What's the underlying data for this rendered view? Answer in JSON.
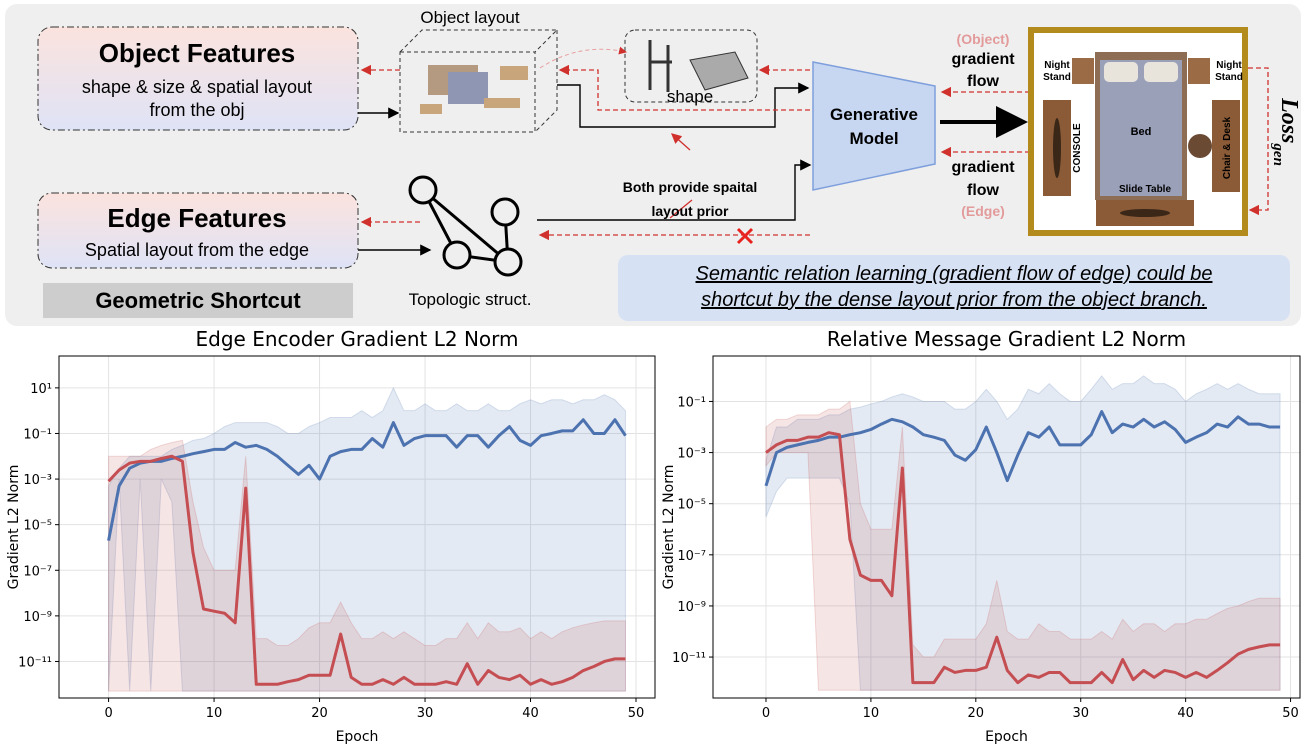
{
  "diagram": {
    "object_features": {
      "title": "Object Features",
      "lines": [
        "shape & size & spatial layout",
        "from the obj"
      ]
    },
    "object_layout_label": "Object layout",
    "shape_label": "shape",
    "generative_model": [
      "Generative",
      "Model"
    ],
    "gradient_flow_object": [
      "(Object)",
      "gradient",
      "flow"
    ],
    "gradient_flow_edge": [
      "gradient",
      "flow",
      "(Edge)"
    ],
    "prior_note": [
      "Both provide spaital",
      "layout prior"
    ],
    "edge_features": {
      "title": "Edge Features",
      "line": "Spatial layout from the edge"
    },
    "shortcut_label": "Geometric Shortcut",
    "topology_label": "Topologic struct.",
    "caption": [
      "Semantic relation learning (gradient flow of edge) could be",
      "shortcut by the dense layout prior from the object branch."
    ],
    "room": {
      "night_stand_left": [
        "Night",
        "Stand"
      ],
      "night_stand_right": [
        "Night",
        "Stand"
      ],
      "bed": "Bed",
      "console": "CONSOLE",
      "chair_desk": "Chair & Desk",
      "slide_table": "Slide Table"
    },
    "loss": {
      "text": "Loss",
      "subscript": "gen"
    }
  },
  "chart_data": [
    {
      "type": "line",
      "title": "Edge Encoder Gradient L2 Norm",
      "x_label": "Epoch",
      "y_label": "Gradient L2 Norm",
      "yscale": "log",
      "grid": true,
      "xlim": [
        -4.7,
        51.8
      ],
      "ylim": [
        2.5e-13,
        250
      ],
      "xticks": [
        0,
        10,
        20,
        30,
        40,
        50
      ],
      "yticks": [
        {
          "value": 10,
          "label": "10¹"
        },
        {
          "value": 0.1,
          "label": "10⁻¹"
        },
        {
          "value": 0.001,
          "label": "10⁻³"
        },
        {
          "value": 1e-05,
          "label": "10⁻⁵"
        },
        {
          "value": 1e-07,
          "label": "10⁻⁷"
        },
        {
          "value": 1e-09,
          "label": "10⁻⁹"
        },
        {
          "value": 1e-11,
          "label": "10⁻¹¹"
        }
      ],
      "x": [
        0,
        1,
        2,
        3,
        4,
        5,
        6,
        7,
        8,
        9,
        10,
        11,
        12,
        13,
        14,
        15,
        16,
        17,
        18,
        19,
        20,
        21,
        22,
        23,
        24,
        25,
        26,
        27,
        28,
        29,
        30,
        31,
        32,
        33,
        34,
        35,
        36,
        37,
        38,
        39,
        40,
        41,
        42,
        43,
        44,
        45,
        46,
        47,
        48,
        49
      ],
      "series": [
        {
          "color": "#4c72b0",
          "values": [
            2e-06,
            0.0005,
            0.003,
            0.005,
            0.006,
            0.006,
            0.008,
            0.01,
            0.013,
            0.016,
            0.02,
            0.02,
            0.04,
            0.025,
            0.03,
            0.02,
            0.01,
            0.004,
            0.0016,
            0.004,
            0.001,
            0.01,
            0.016,
            0.02,
            0.02,
            0.06,
            0.025,
            0.3,
            0.03,
            0.06,
            0.08,
            0.08,
            0.08,
            0.025,
            0.08,
            0.08,
            0.025,
            0.08,
            0.2,
            0.05,
            0.03,
            0.08,
            0.1,
            0.13,
            0.13,
            0.4,
            0.1,
            0.1,
            0.4,
            0.08
          ],
          "lower": [
            5e-13,
            0.001,
            5e-13,
            0.001,
            5e-13,
            0.001,
            0.0001,
            5e-13,
            5e-13,
            5e-13,
            5e-13,
            5e-13,
            5e-13,
            5e-13,
            5e-13,
            5e-13,
            5e-13,
            5e-13,
            5e-13,
            5e-13,
            5e-13,
            5e-13,
            5e-13,
            5e-13,
            5e-13,
            5e-13,
            5e-13,
            5e-13,
            5e-13,
            5e-13,
            5e-13,
            5e-13,
            5e-13,
            5e-13,
            5e-13,
            5e-13,
            5e-13,
            5e-13,
            5e-13,
            5e-13,
            5e-13,
            5e-13,
            5e-13,
            5e-13,
            5e-13,
            5e-13,
            5e-13,
            5e-13,
            5e-13,
            5e-13
          ],
          "upper": [
            0.0005,
            0.003,
            0.01,
            0.01,
            0.01,
            0.01,
            0.02,
            0.03,
            0.05,
            0.06,
            0.1,
            0.2,
            0.3,
            0.3,
            0.3,
            0.3,
            0.2,
            0.1,
            0.1,
            0.2,
            0.3,
            0.5,
            0.5,
            0.5,
            1,
            0.5,
            1,
            10,
            1,
            1,
            2,
            1,
            1,
            2,
            1,
            1,
            2,
            1,
            1,
            2,
            3,
            2,
            3,
            3,
            2,
            3,
            3,
            5,
            3,
            1
          ]
        },
        {
          "color": "#c44e52",
          "values": [
            0.0008,
            0.0025,
            0.005,
            0.006,
            0.006,
            0.008,
            0.01,
            0.006,
            6e-07,
            2e-09,
            1.6e-09,
            1.3e-09,
            5e-10,
            0.0004,
            1e-12,
            1e-12,
            1e-12,
            1.3e-12,
            1.6e-12,
            2.5e-12,
            2.5e-12,
            2.5e-12,
            1.6e-10,
            2e-12,
            1e-12,
            1e-12,
            1.6e-12,
            1e-12,
            2e-12,
            1e-12,
            1e-12,
            1e-12,
            1.3e-12,
            1e-12,
            8e-12,
            1e-12,
            4e-12,
            2e-12,
            1.6e-12,
            2.5e-12,
            1e-12,
            1.6e-12,
            1e-12,
            1.3e-12,
            2e-12,
            4e-12,
            6e-12,
            1e-11,
            1.3e-11,
            1.3e-11
          ],
          "lower": [
            5e-13,
            5e-13,
            5e-13,
            5e-13,
            5e-13,
            5e-13,
            5e-13,
            5e-13,
            5e-13,
            5e-13,
            5e-13,
            5e-13,
            5e-13,
            5e-13,
            5e-13,
            5e-13,
            5e-13,
            5e-13,
            5e-13,
            5e-13,
            5e-13,
            5e-13,
            5e-13,
            5e-13,
            5e-13,
            5e-13,
            5e-13,
            5e-13,
            5e-13,
            5e-13,
            5e-13,
            5e-13,
            5e-13,
            5e-13,
            5e-13,
            5e-13,
            5e-13,
            5e-13,
            5e-13,
            5e-13,
            5e-13,
            5e-13,
            5e-13,
            5e-13,
            5e-13,
            5e-13,
            5e-13,
            5e-13,
            5e-13,
            5e-13
          ],
          "upper": [
            0.01,
            0.01,
            0.01,
            0.01,
            0.02,
            0.03,
            0.04,
            0.05,
            0.0001,
            1e-06,
            1e-07,
            1e-07,
            1e-07,
            0.01,
            1e-10,
            1e-10,
            5e-11,
            5e-11,
            1e-10,
            3e-10,
            5e-10,
            5e-10,
            4e-09,
            5e-10,
            1e-10,
            1e-10,
            2e-10,
            1e-10,
            2e-10,
            1e-10,
            5e-11,
            5e-11,
            1e-10,
            1e-10,
            5e-10,
            1e-10,
            5e-10,
            2e-10,
            2e-10,
            3e-10,
            1e-10,
            2e-10,
            1e-10,
            2e-10,
            3e-10,
            4e-10,
            5e-10,
            6e-10,
            6e-10,
            6e-10
          ]
        }
      ]
    },
    {
      "type": "line",
      "title": "Relative Message Gradient L2 Norm",
      "x_label": "Epoch",
      "y_label": "Gradient L2 Norm",
      "yscale": "log",
      "grid": true,
      "xlim": [
        -5.05,
        50.9
      ],
      "ylim": [
        2.5e-13,
        6
      ],
      "xticks": [
        0,
        10,
        20,
        30,
        40,
        50
      ],
      "yticks": [
        {
          "value": 0.1,
          "label": "10⁻¹"
        },
        {
          "value": 0.001,
          "label": "10⁻³"
        },
        {
          "value": 1e-05,
          "label": "10⁻⁵"
        },
        {
          "value": 1e-07,
          "label": "10⁻⁷"
        },
        {
          "value": 1e-09,
          "label": "10⁻⁹"
        },
        {
          "value": 1e-11,
          "label": "10⁻¹¹"
        }
      ],
      "x": [
        0,
        1,
        2,
        3,
        4,
        5,
        6,
        7,
        8,
        9,
        10,
        11,
        12,
        13,
        14,
        15,
        16,
        17,
        18,
        19,
        20,
        21,
        22,
        23,
        24,
        25,
        26,
        27,
        28,
        29,
        30,
        31,
        32,
        33,
        34,
        35,
        36,
        37,
        38,
        39,
        40,
        41,
        42,
        43,
        44,
        45,
        46,
        47,
        48,
        49
      ],
      "series": [
        {
          "color": "#4c72b0",
          "values": [
            5e-05,
            0.001,
            0.0016,
            0.002,
            0.0025,
            0.003,
            0.004,
            0.004,
            0.005,
            0.006,
            0.008,
            0.013,
            0.02,
            0.016,
            0.01,
            0.005,
            0.004,
            0.003,
            0.0008,
            0.0005,
            0.0013,
            0.01,
            0.001,
            8e-05,
            0.0008,
            0.006,
            0.004,
            0.01,
            0.002,
            0.002,
            0.002,
            0.005,
            0.04,
            0.006,
            0.013,
            0.01,
            0.02,
            0.01,
            0.016,
            0.008,
            0.0025,
            0.004,
            0.006,
            0.013,
            0.01,
            0.025,
            0.013,
            0.013,
            0.01,
            0.01
          ],
          "lower": [
            3e-06,
            3e-05,
            0.0001,
            0.0001,
            0.0001,
            0.0001,
            0.0001,
            0.0001,
            1e-05,
            5e-13,
            5e-13,
            5e-13,
            5e-13,
            5e-13,
            5e-13,
            5e-13,
            5e-13,
            5e-13,
            5e-13,
            5e-13,
            5e-13,
            5e-13,
            5e-13,
            5e-13,
            5e-13,
            5e-13,
            5e-13,
            5e-13,
            5e-13,
            5e-13,
            5e-13,
            5e-13,
            5e-13,
            5e-13,
            5e-13,
            5e-13,
            5e-13,
            5e-13,
            5e-13,
            5e-13,
            5e-13,
            5e-13,
            5e-13,
            5e-13,
            5e-13,
            5e-13,
            5e-13,
            5e-13,
            5e-13,
            5e-13
          ],
          "upper": [
            0.0005,
            0.01,
            0.01,
            0.02,
            0.02,
            0.02,
            0.03,
            0.03,
            0.05,
            0.06,
            0.08,
            0.1,
            0.15,
            0.2,
            0.15,
            0.1,
            0.1,
            0.1,
            0.05,
            0.05,
            0.1,
            0.3,
            0.1,
            0.02,
            0.05,
            0.3,
            0.2,
            0.5,
            0.2,
            0.1,
            0.1,
            0.3,
            1,
            0.3,
            0.5,
            0.5,
            1,
            0.5,
            0.5,
            0.3,
            0.1,
            0.2,
            0.3,
            0.5,
            0.3,
            0.5,
            0.3,
            0.2,
            0.2,
            0.2
          ]
        },
        {
          "color": "#c44e52",
          "values": [
            0.001,
            0.002,
            0.003,
            0.003,
            0.004,
            0.004,
            0.006,
            0.005,
            4e-07,
            1.6e-08,
            1e-08,
            1e-08,
            2.5e-09,
            0.00025,
            1e-12,
            1e-12,
            1e-12,
            4e-12,
            2.5e-12,
            3e-12,
            3e-12,
            4e-12,
            6e-11,
            3e-12,
            1e-12,
            2e-12,
            1.6e-12,
            2.5e-12,
            2.5e-12,
            1e-12,
            1e-12,
            1e-12,
            2.5e-12,
            1e-12,
            8e-12,
            1.3e-12,
            3e-12,
            1.6e-12,
            3e-12,
            2.5e-12,
            1.6e-12,
            2.5e-12,
            1.6e-12,
            3e-12,
            6e-12,
            1.3e-11,
            2e-11,
            2.5e-11,
            3e-11,
            3e-11
          ],
          "lower": [
            0.0003,
            0.001,
            0.001,
            0.001,
            0.001,
            5e-13,
            5e-13,
            5e-13,
            5e-13,
            5e-13,
            5e-13,
            5e-13,
            5e-13,
            5e-13,
            5e-13,
            5e-13,
            5e-13,
            5e-13,
            5e-13,
            5e-13,
            5e-13,
            5e-13,
            5e-13,
            5e-13,
            5e-13,
            5e-13,
            5e-13,
            5e-13,
            5e-13,
            5e-13,
            5e-13,
            5e-13,
            5e-13,
            5e-13,
            5e-13,
            5e-13,
            5e-13,
            5e-13,
            5e-13,
            5e-13,
            5e-13,
            5e-13,
            5e-13,
            5e-13,
            5e-13,
            5e-13,
            5e-13,
            5e-13,
            5e-13,
            5e-13
          ],
          "upper": [
            0.01,
            0.02,
            0.02,
            0.03,
            0.03,
            0.03,
            0.05,
            0.05,
            0.1,
            1e-05,
            1e-06,
            1e-06,
            1e-06,
            0.01,
            3e-11,
            1e-11,
            1e-11,
            5e-11,
            5e-11,
            5e-11,
            5e-11,
            2e-10,
            1e-08,
            1e-10,
            5e-11,
            5e-11,
            2e-10,
            1e-10,
            1e-10,
            5e-11,
            5e-11,
            5e-11,
            1e-10,
            5e-11,
            3e-10,
            1e-10,
            2e-10,
            2e-10,
            1e-10,
            2e-10,
            2e-10,
            3e-10,
            3e-10,
            5e-10,
            8e-10,
            1e-09,
            1.5e-09,
            2e-09,
            2e-09,
            2e-09
          ]
        }
      ]
    }
  ]
}
